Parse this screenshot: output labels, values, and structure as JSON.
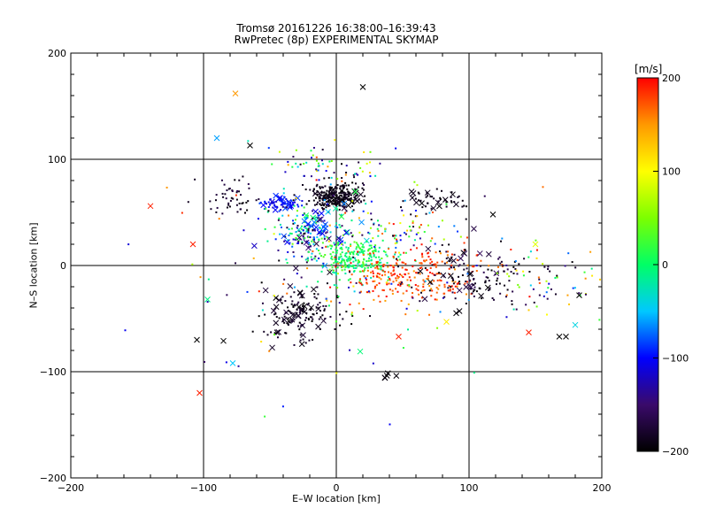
{
  "chart_data": {
    "type": "scatter",
    "title": "Tromsø 20161226 16:38:00–16:39:43",
    "subtitle": "RwPretec (8p) EXPERIMENTAL SKYMAP",
    "xlabel": "E–W location [km]",
    "ylabel": "N–S location [km]",
    "xlim": [
      -200,
      200
    ],
    "ylim": [
      -200,
      200
    ],
    "xticks": [
      -200,
      -100,
      0,
      100,
      200
    ],
    "yticks": [
      -200,
      -100,
      0,
      100,
      200
    ],
    "grid": true,
    "colorbar": {
      "label": "[m/s]",
      "range": [
        -200,
        200
      ],
      "ticks": [
        -200,
        -100,
        0,
        100,
        200
      ],
      "colors": [
        "#000000",
        "#3a0a6a",
        "#0000ff",
        "#00c8ff",
        "#00ff66",
        "#7cff00",
        "#ffff00",
        "#ff9900",
        "#ff0000"
      ]
    },
    "clusters": [
      {
        "cx": 0,
        "cy": 65,
        "sx": 10,
        "sy": 7,
        "n": 230,
        "vel": [
          -200,
          -180
        ],
        "marker": "dot"
      },
      {
        "cx": 0,
        "cy": 65,
        "sx": 10,
        "sy": 7,
        "n": 25,
        "vel": [
          -200,
          -180
        ],
        "marker": "x"
      },
      {
        "cx": -42,
        "cy": 58,
        "sx": 7,
        "sy": 3,
        "n": 60,
        "vel": [
          -120,
          -80
        ],
        "marker": "dot"
      },
      {
        "cx": -42,
        "cy": 58,
        "sx": 7,
        "sy": 3,
        "n": 12,
        "vel": [
          -120,
          -80
        ],
        "marker": "x"
      },
      {
        "cx": -20,
        "cy": 30,
        "sx": 14,
        "sy": 14,
        "n": 180,
        "vel": [
          -200,
          50
        ],
        "marker": "dot"
      },
      {
        "cx": -15,
        "cy": 35,
        "sx": 15,
        "sy": 15,
        "n": 40,
        "vel": [
          -200,
          20
        ],
        "marker": "x"
      },
      {
        "cx": 15,
        "cy": 5,
        "sx": 15,
        "sy": 9,
        "n": 250,
        "vel": [
          -30,
          40
        ],
        "marker": "dot"
      },
      {
        "cx": 55,
        "cy": -10,
        "sx": 30,
        "sy": 13,
        "n": 260,
        "vel": [
          150,
          200
        ],
        "marker": "dot"
      },
      {
        "cx": 110,
        "cy": -10,
        "sx": 30,
        "sy": 12,
        "n": 120,
        "vel": [
          -200,
          -160
        ],
        "marker": "dot"
      },
      {
        "cx": 100,
        "cy": 0,
        "sx": 20,
        "sy": 20,
        "n": 25,
        "vel": [
          -200,
          -150
        ],
        "marker": "x"
      },
      {
        "cx": -25,
        "cy": -45,
        "sx": 14,
        "sy": 12,
        "n": 120,
        "vel": [
          -200,
          -170
        ],
        "marker": "dot"
      },
      {
        "cx": -25,
        "cy": -45,
        "sx": 16,
        "sy": 15,
        "n": 35,
        "vel": [
          -200,
          -170
        ],
        "marker": "x"
      },
      {
        "cx": -75,
        "cy": 65,
        "sx": 12,
        "sy": 8,
        "n": 50,
        "vel": [
          -200,
          -160
        ],
        "marker": "dot"
      },
      {
        "cx": 75,
        "cy": 62,
        "sx": 12,
        "sy": 5,
        "n": 40,
        "vel": [
          -200,
          -180
        ],
        "marker": "dot"
      },
      {
        "cx": 75,
        "cy": 62,
        "sx": 12,
        "sy": 5,
        "n": 12,
        "vel": [
          -200,
          -180
        ],
        "marker": "x"
      },
      {
        "cx": 40,
        "cy": 35,
        "sx": 25,
        "sy": 12,
        "n": 80,
        "vel": [
          -200,
          200
        ],
        "marker": "dot"
      },
      {
        "cx": -10,
        "cy": 95,
        "sx": 25,
        "sy": 10,
        "n": 60,
        "vel": [
          -200,
          200
        ],
        "marker": "dot"
      },
      {
        "cx": 160,
        "cy": -15,
        "sx": 25,
        "sy": 18,
        "n": 60,
        "vel": [
          -200,
          200
        ],
        "marker": "dot"
      },
      {
        "cx": 0,
        "cy": 0,
        "sx": 65,
        "sy": 55,
        "n": 120,
        "vel": [
          -200,
          200
        ],
        "marker": "dot"
      },
      {
        "cx": 40,
        "cy": -102,
        "sx": 3,
        "sy": 3,
        "n": 5,
        "vel": [
          -200,
          -190
        ],
        "marker": "x"
      }
    ],
    "outlier_points": [
      {
        "x": 20,
        "y": 168,
        "v": -200
      },
      {
        "x": -76,
        "y": 162,
        "v": 150
      },
      {
        "x": -90,
        "y": 120,
        "v": -60
      },
      {
        "x": -65,
        "y": 113,
        "v": -200
      },
      {
        "x": -140,
        "y": 56,
        "v": 190
      },
      {
        "x": -108,
        "y": 20,
        "v": 190
      },
      {
        "x": -103,
        "y": -120,
        "v": 190
      },
      {
        "x": -105,
        "y": -70,
        "v": -200
      },
      {
        "x": -78,
        "y": -92,
        "v": -50
      },
      {
        "x": -85,
        "y": -71,
        "v": -200
      },
      {
        "x": -97,
        "y": -32,
        "v": -10
      },
      {
        "x": 145,
        "y": -63,
        "v": 190
      },
      {
        "x": 180,
        "y": -56,
        "v": -40
      },
      {
        "x": 168,
        "y": -67,
        "v": -200
      },
      {
        "x": 173,
        "y": -67,
        "v": -200
      },
      {
        "x": 83,
        "y": -53,
        "v": 110
      },
      {
        "x": 47,
        "y": -67,
        "v": 190
      },
      {
        "x": 18,
        "y": -81,
        "v": -5
      },
      {
        "x": 118,
        "y": 48,
        "v": -200
      },
      {
        "x": 150,
        "y": 20,
        "v": 90
      },
      {
        "x": 183,
        "y": -28,
        "v": -200
      }
    ]
  }
}
